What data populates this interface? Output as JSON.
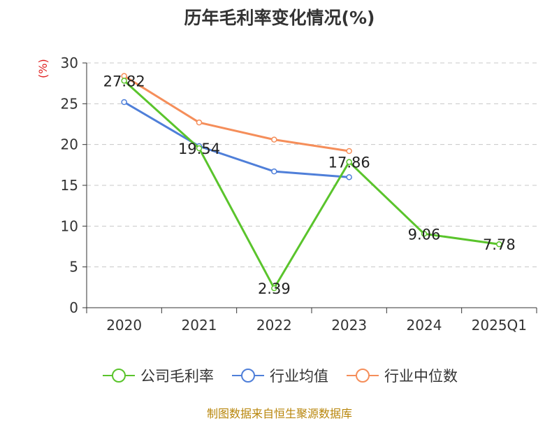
{
  "chart_data": {
    "type": "line",
    "title": "历年毛利率变化情况(%)",
    "ylabel": "(%)",
    "xlabel": "",
    "categories": [
      "2020",
      "2021",
      "2022",
      "2023",
      "2024",
      "2025Q1"
    ],
    "ylim": [
      0,
      30
    ],
    "yticks": [
      0,
      5,
      10,
      15,
      20,
      25,
      30
    ],
    "grid": true,
    "legend_position": "bottom",
    "series": [
      {
        "name": "公司毛利率",
        "color": "#5ac42c",
        "labeled": true,
        "values": [
          27.82,
          19.54,
          2.39,
          17.86,
          9.06,
          7.78
        ]
      },
      {
        "name": "行业均值",
        "color": "#4f7fd9",
        "labeled": false,
        "values": [
          25.2,
          19.8,
          16.7,
          16.0,
          null,
          null
        ]
      },
      {
        "name": "行业中位数",
        "color": "#f58e5a",
        "labeled": false,
        "values": [
          28.4,
          22.7,
          20.6,
          19.2,
          null,
          null
        ]
      }
    ]
  },
  "source": "制图数据来自恒生聚源数据库"
}
